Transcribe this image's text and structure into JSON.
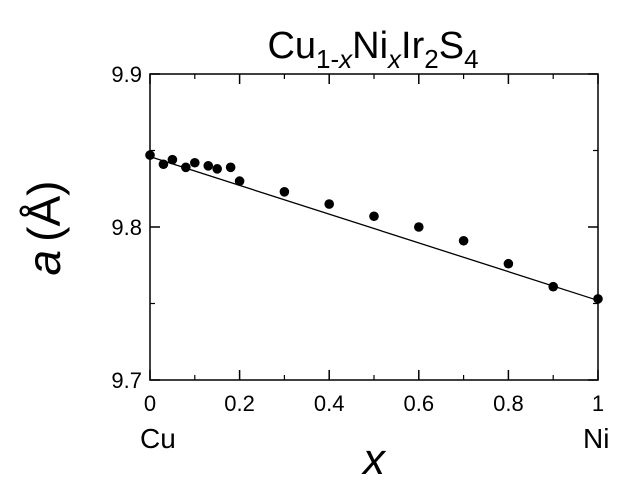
{
  "chart_data": {
    "type": "scatter",
    "title": {
      "main": "Cu",
      "sub1": "1-",
      "sub1_italic": "x",
      "mid": "Ni",
      "sub2_italic": "x",
      "mid2": "Ir",
      "sub3": "2",
      "mid3": "S",
      "sub4": "4"
    },
    "xlabel": "x",
    "ylabel": {
      "symbol": "a",
      "unit_open": "(",
      "unit": "Å",
      "unit_close": ")"
    },
    "xlim": [
      0,
      1
    ],
    "ylim": [
      9.7,
      9.9
    ],
    "x_ticks": [
      "0",
      "0.2",
      "0.4",
      "0.6",
      "0.8",
      "1"
    ],
    "y_ticks": [
      "9.7",
      "9.8",
      "9.9"
    ],
    "x_end_labels": {
      "left": "Cu",
      "right": "Ni"
    },
    "series": [
      {
        "x": [
          0,
          0.03,
          0.05,
          0.08,
          0.1,
          0.13,
          0.15,
          0.18,
          0.2,
          0.3,
          0.4,
          0.5,
          0.6,
          0.7,
          0.8,
          0.9,
          1.0
        ],
        "y": [
          9.847,
          9.841,
          9.844,
          9.839,
          9.842,
          9.84,
          9.838,
          9.839,
          9.83,
          9.823,
          9.815,
          9.807,
          9.8,
          9.791,
          9.776,
          9.761,
          9.753
        ]
      }
    ],
    "fit_line": {
      "x": [
        0,
        1
      ],
      "y": [
        9.846,
        9.752
      ]
    }
  }
}
